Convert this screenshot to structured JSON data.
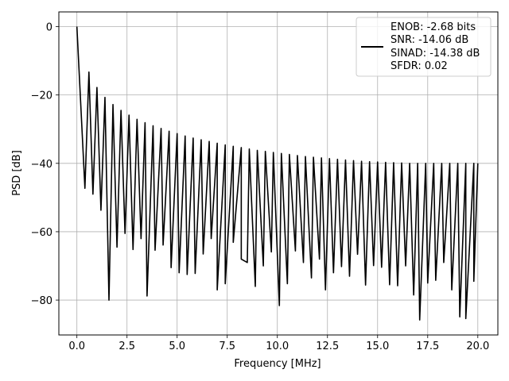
{
  "chart_data": {
    "type": "line",
    "title": "",
    "xlabel": "Frequency [MHz]",
    "ylabel": "PSD [dB]",
    "xlim": [
      -0.9,
      21.0
    ],
    "ylim": [
      -90.2,
      4.3
    ],
    "xticks": [
      0.0,
      2.5,
      5.0,
      7.5,
      10.0,
      12.5,
      15.0,
      17.5,
      20.0
    ],
    "xtick_labels": [
      "0.0",
      "2.5",
      "5.0",
      "7.5",
      "10.0",
      "12.5",
      "15.0",
      "17.5",
      "20.0"
    ],
    "yticks": [
      0,
      -20,
      -40,
      -60,
      -80
    ],
    "ytick_labels": [
      "0",
      "−20",
      "−40",
      "−60",
      "−80"
    ],
    "grid": true,
    "legend_position": "top-right",
    "legend_lines": [
      "ENOB: -2.68 bits",
      "SNR: -14.06 dB",
      "SINAD: -14.38 dB",
      "SFDR: 0.02"
    ],
    "series": [
      {
        "color": "#000000",
        "null_spacing_mhz": 0.4,
        "x_range": [
          0.0,
          20.0
        ],
        "peaks": [
          [
            0.0,
            0.0
          ],
          [
            0.6,
            -13.3
          ],
          [
            1.0,
            -17.8
          ],
          [
            1.4,
            -20.7
          ],
          [
            1.8,
            -22.8
          ],
          [
            2.2,
            -24.5
          ],
          [
            2.6,
            -25.9
          ],
          [
            3.0,
            -27.1
          ],
          [
            3.4,
            -28.1
          ],
          [
            3.8,
            -29.0
          ],
          [
            4.2,
            -29.8
          ],
          [
            4.6,
            -30.6
          ],
          [
            5.0,
            -31.3
          ],
          [
            5.4,
            -32.0
          ],
          [
            5.8,
            -32.6
          ],
          [
            6.2,
            -33.1
          ],
          [
            6.6,
            -33.6
          ],
          [
            7.0,
            -34.1
          ],
          [
            7.4,
            -34.6
          ],
          [
            7.8,
            -35.0
          ],
          [
            8.2,
            -35.4
          ],
          [
            8.6,
            -35.8
          ],
          [
            9.0,
            -36.2
          ],
          [
            9.4,
            -36.5
          ],
          [
            9.8,
            -36.8
          ],
          [
            10.2,
            -37.1
          ],
          [
            10.6,
            -37.4
          ],
          [
            11.0,
            -37.7
          ],
          [
            11.4,
            -38.0
          ],
          [
            11.8,
            -38.2
          ],
          [
            12.2,
            -38.4
          ],
          [
            12.6,
            -38.6
          ],
          [
            13.0,
            -38.8
          ],
          [
            13.4,
            -39.0
          ],
          [
            13.8,
            -39.2
          ],
          [
            14.2,
            -39.4
          ],
          [
            14.6,
            -39.5
          ],
          [
            15.0,
            -39.6
          ],
          [
            15.4,
            -39.7
          ],
          [
            15.8,
            -39.8
          ],
          [
            16.2,
            -39.9
          ],
          [
            16.6,
            -40.0
          ],
          [
            17.0,
            -40.0
          ],
          [
            17.4,
            -40.0
          ],
          [
            17.8,
            -40.0
          ],
          [
            18.2,
            -40.0
          ],
          [
            18.6,
            -40.0
          ],
          [
            19.0,
            -40.0
          ],
          [
            19.4,
            -40.0
          ],
          [
            19.8,
            -40.0
          ],
          [
            20.0,
            -40.0
          ]
        ],
        "nulls": [
          [
            0.4,
            -47.3
          ],
          [
            0.8,
            -49.0
          ],
          [
            1.2,
            -53.7
          ],
          [
            1.6,
            -80.0
          ],
          [
            2.0,
            -64.5
          ],
          [
            2.4,
            -60.5
          ],
          [
            2.8,
            -65.2
          ],
          [
            3.2,
            -62.0
          ],
          [
            3.5,
            -78.8
          ],
          [
            3.9,
            -65.4
          ],
          [
            4.3,
            -63.9
          ],
          [
            4.7,
            -70.5
          ],
          [
            5.1,
            -72.0
          ],
          [
            5.5,
            -72.5
          ],
          [
            5.9,
            -72.2
          ],
          [
            6.3,
            -66.5
          ],
          [
            6.7,
            -62.0
          ],
          [
            7.0,
            -77.0
          ],
          [
            7.4,
            -75.2
          ],
          [
            7.8,
            -63.1
          ],
          [
            8.2,
            -68.0
          ],
          [
            8.5,
            -69.0
          ],
          [
            8.9,
            -76.0
          ],
          [
            9.3,
            -70.0
          ],
          [
            9.7,
            -65.9
          ],
          [
            10.1,
            -81.6
          ],
          [
            10.5,
            -75.2
          ],
          [
            10.9,
            -65.6
          ],
          [
            11.3,
            -69.0
          ],
          [
            11.7,
            -73.5
          ],
          [
            12.1,
            -68.0
          ],
          [
            12.4,
            -77.0
          ],
          [
            12.8,
            -72.0
          ],
          [
            13.2,
            -70.2
          ],
          [
            13.6,
            -73.0
          ],
          [
            14.0,
            -66.6
          ],
          [
            14.4,
            -75.6
          ],
          [
            14.8,
            -69.9
          ],
          [
            15.2,
            -70.4
          ],
          [
            15.6,
            -75.5
          ],
          [
            16.0,
            -75.8
          ],
          [
            16.4,
            -70.0
          ],
          [
            16.8,
            -78.5
          ],
          [
            17.1,
            -85.8
          ],
          [
            17.5,
            -75.0
          ],
          [
            17.9,
            -74.2
          ],
          [
            18.3,
            -69.0
          ],
          [
            18.7,
            -77.0
          ],
          [
            19.1,
            -84.9
          ],
          [
            19.4,
            -85.4
          ],
          [
            19.8,
            -74.5
          ]
        ]
      }
    ]
  }
}
